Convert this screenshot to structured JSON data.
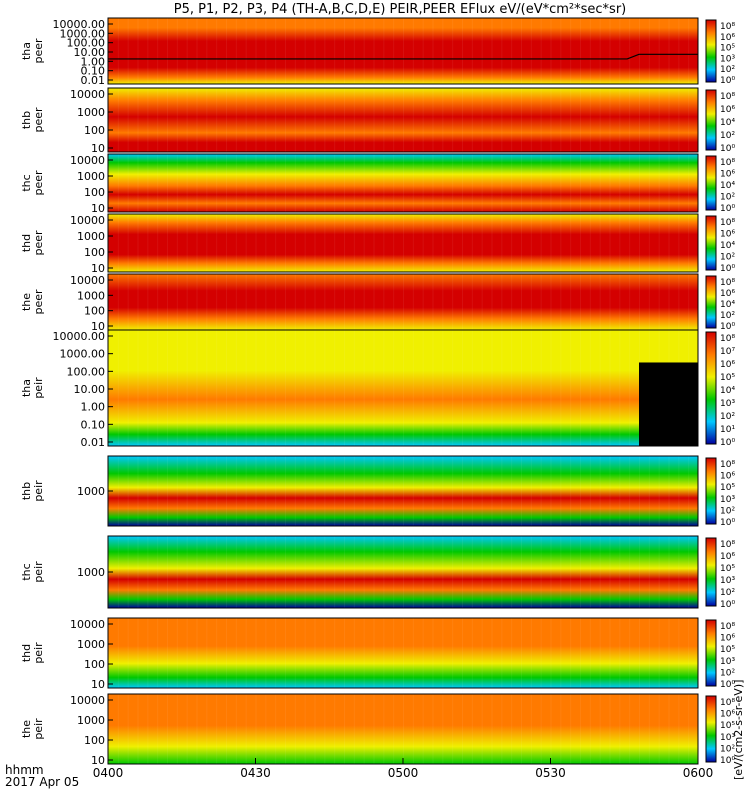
{
  "title": "P5, P1, P2, P3, P4 (TH-A,B,C,D,E) PEIR,PEER EFlux eV/(eV*cm²*sec*sr)",
  "colorbar_label": "[eV/(cm2-s-sr-eV)]",
  "x_axis": {
    "label_line1": "hhmm",
    "label_line2": "2017 Apr 05",
    "ticks": [
      "0400",
      "0430",
      "0500",
      "0530",
      "0600"
    ]
  },
  "colorbar_ticks": [
    "10⁸",
    "10⁷",
    "10⁶",
    "10⁵",
    "10⁴",
    "10³",
    "10²",
    "10¹",
    "10⁰"
  ],
  "colors": {
    "max": "#d40000",
    "high": "#ff7a00",
    "mid": "#f0f000",
    "low": "#00c800",
    "lower": "#00c8ff",
    "min": "#0000a0",
    "gap": "#000000"
  },
  "chart_data": [
    {
      "type": "heatmap",
      "title_line1": "tha",
      "title_line2": "peer",
      "ylog": true,
      "yticks": [
        "10000.00",
        "1000.00",
        "100.00",
        "10.00",
        "1.00",
        "0.10",
        "0.01"
      ],
      "note": "electron energy flux, red core at low energies, yellow high energies, black potential line near 1 eV"
    },
    {
      "type": "heatmap",
      "title_line1": "thb",
      "title_line2": "peer",
      "ylog": true,
      "yticks": [
        "10000",
        "1000",
        "100",
        "10"
      ]
    },
    {
      "type": "heatmap",
      "title_line1": "thc",
      "title_line2": "peer",
      "ylog": true,
      "yticks": [
        "10000",
        "1000",
        "100",
        "10"
      ]
    },
    {
      "type": "heatmap",
      "title_line1": "thd",
      "title_line2": "peer",
      "ylog": true,
      "yticks": [
        "10000",
        "1000",
        "100",
        "10"
      ]
    },
    {
      "type": "heatmap",
      "title_line1": "the",
      "title_line2": "peer",
      "ylog": true,
      "yticks": [
        "10000",
        "1000",
        "100",
        "10"
      ]
    },
    {
      "type": "heatmap",
      "title_line1": "tha",
      "title_line2": "peir",
      "ylog": true,
      "yticks": [
        "10000.00",
        "1000.00",
        "100.00",
        "10.00",
        "1.00",
        "0.10",
        "0.01"
      ]
    },
    {
      "type": "heatmap",
      "title_line1": "thb",
      "title_line2": "peir",
      "ylog": true,
      "yticks": [
        "1000"
      ]
    },
    {
      "type": "heatmap",
      "title_line1": "thc",
      "title_line2": "peir",
      "ylog": true,
      "yticks": [
        "1000"
      ]
    },
    {
      "type": "heatmap",
      "title_line1": "thd",
      "title_line2": "peir",
      "ylog": true,
      "yticks": [
        "10000",
        "1000",
        "100",
        "10"
      ]
    },
    {
      "type": "heatmap",
      "title_line1": "the",
      "title_line2": "peir",
      "ylog": true,
      "yticks": [
        "10000",
        "1000",
        "100",
        "10"
      ]
    }
  ]
}
